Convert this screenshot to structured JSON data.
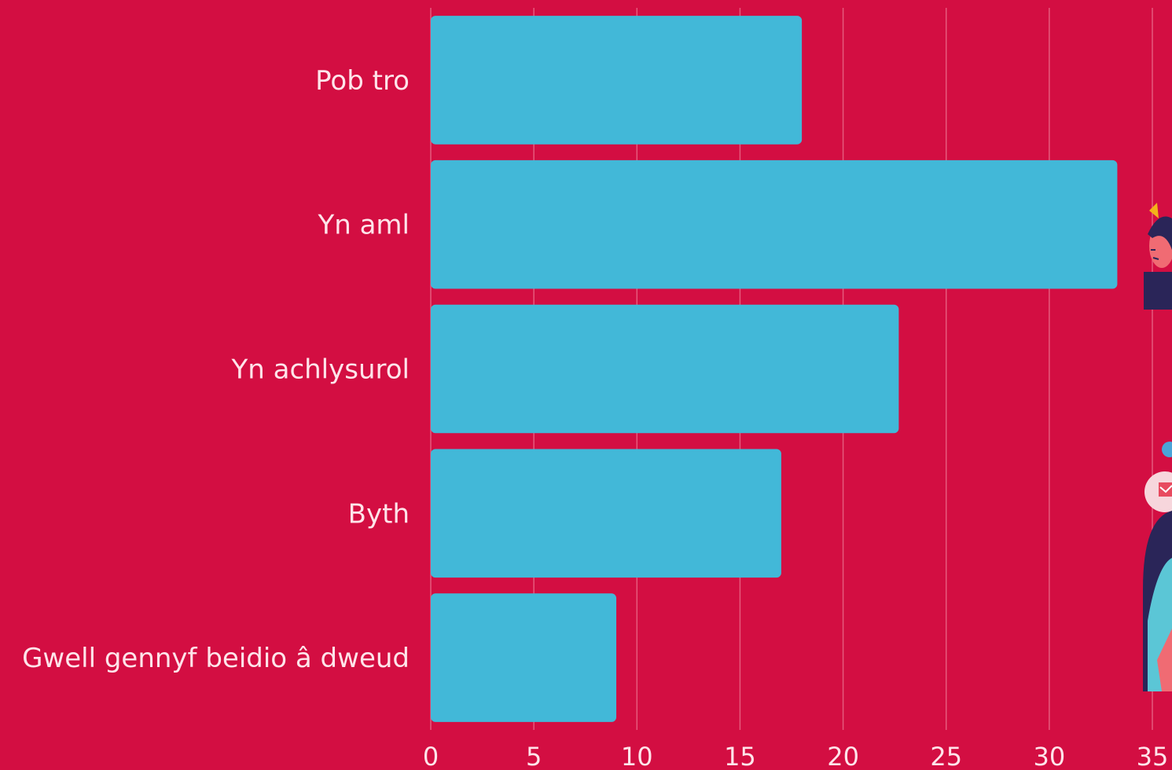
{
  "colors": {
    "background": "#d30e42",
    "bar": "#42b8d8",
    "text": "#ffe4ea",
    "grid": "#e55a7c"
  },
  "chart_data": {
    "type": "bar",
    "orientation": "horizontal",
    "categories": [
      "Pob tro",
      "Yn aml",
      "Yn achlysurol",
      "Byth",
      "Gwell gennyf beidio â dweud"
    ],
    "values": [
      18,
      33.3,
      22.7,
      17,
      9
    ],
    "xlim": [
      0,
      35
    ],
    "xticks": [
      "0",
      "5",
      "10",
      "15",
      "20",
      "25",
      "30",
      "35"
    ],
    "grid": true,
    "title": "",
    "xlabel": "",
    "ylabel": ""
  }
}
